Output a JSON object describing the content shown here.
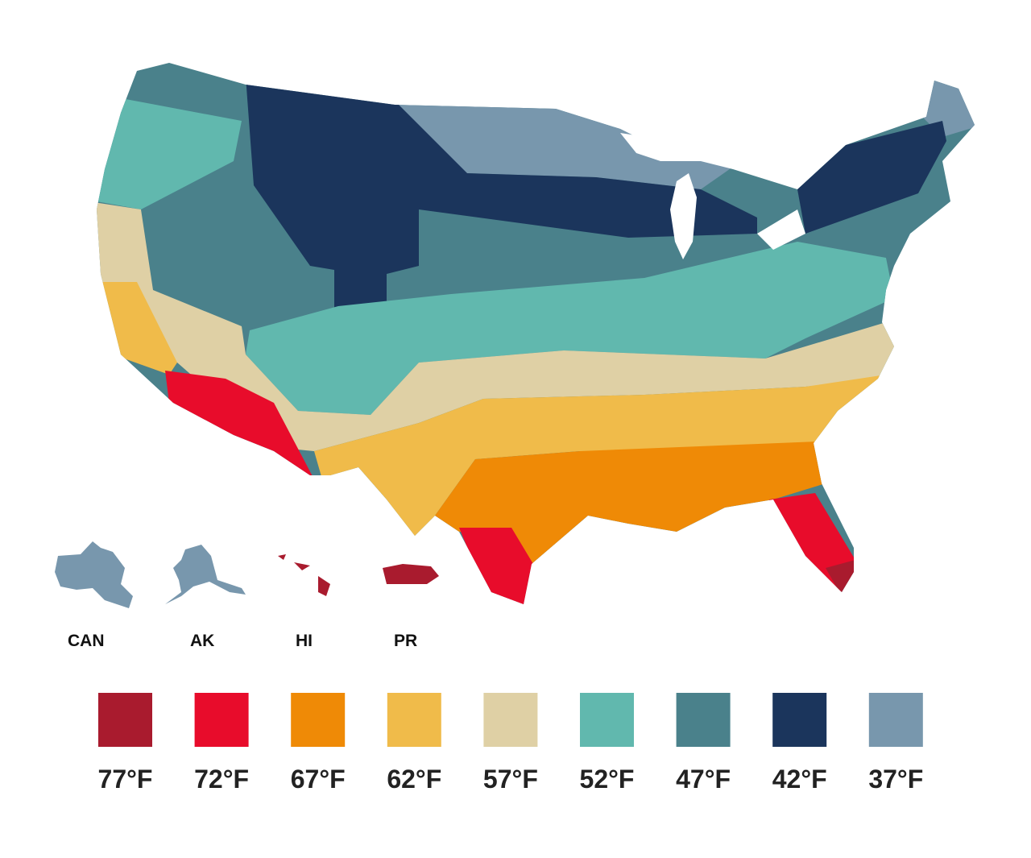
{
  "insets": {
    "labels": [
      "CAN",
      "AK",
      "HI",
      "PR"
    ]
  },
  "legend": {
    "items": [
      {
        "label": "77°F",
        "color": "#a91b2e"
      },
      {
        "label": "72°F",
        "color": "#e80c2b"
      },
      {
        "label": "67°F",
        "color": "#ef8a06"
      },
      {
        "label": "62°F",
        "color": "#f0bb4a"
      },
      {
        "label": "57°F",
        "color": "#dfd0a5"
      },
      {
        "label": "52°F",
        "color": "#61b8ae"
      },
      {
        "label": "47°F",
        "color": "#4a818b"
      },
      {
        "label": "42°F",
        "color": "#1b355c"
      },
      {
        "label": "37°F",
        "color": "#7897ad"
      }
    ]
  }
}
